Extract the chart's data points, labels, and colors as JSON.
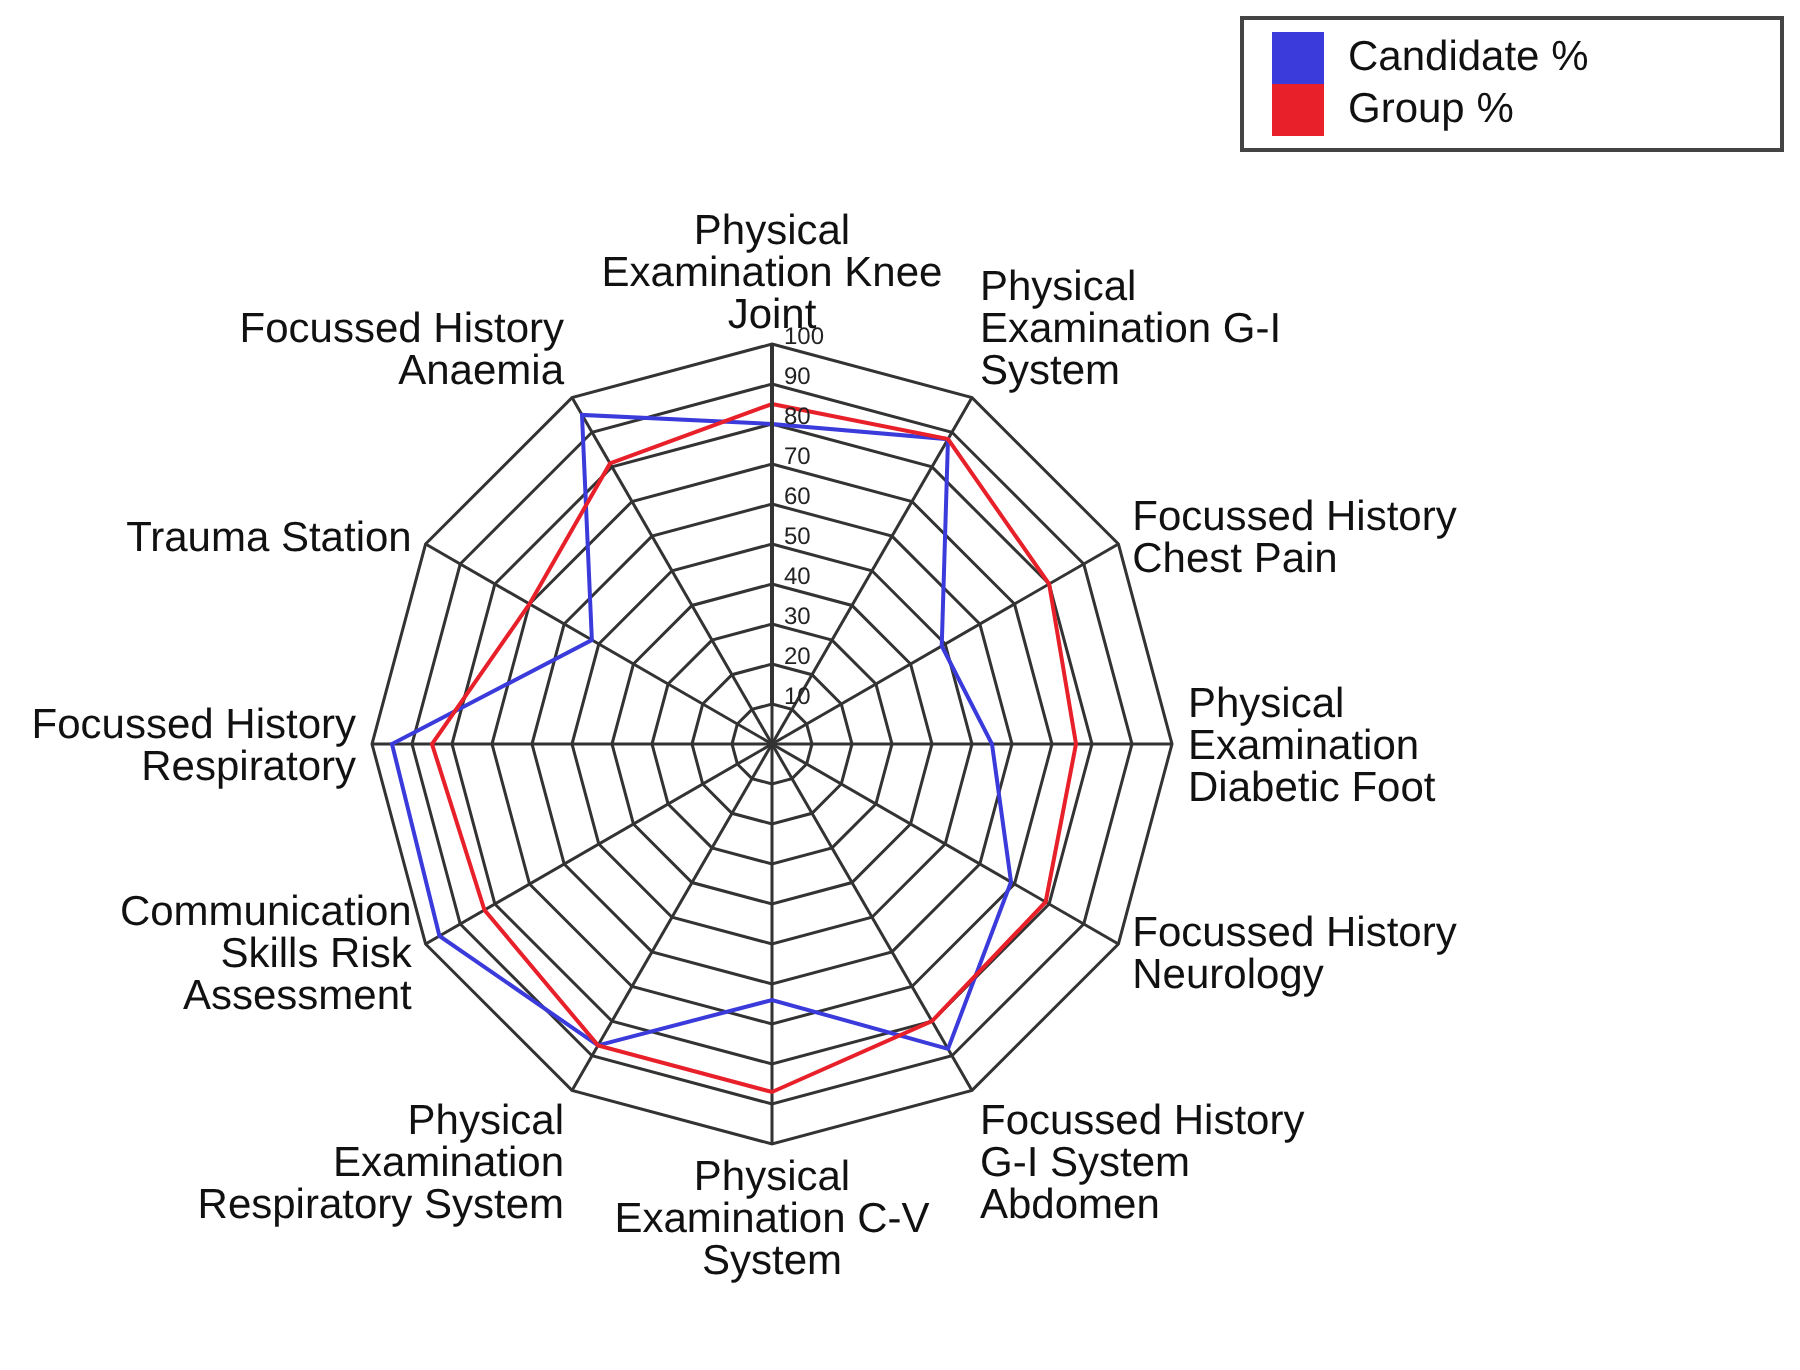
{
  "chart_data": {
    "type": "radar",
    "categories": [
      "Physical Examination Knee Joint",
      "Physical Examination G-I System",
      "Focussed History Chest Pain",
      "Physical Examination Diabetic Foot",
      "Focussed History Neurology",
      "Focussed History G-I System Abdomen",
      "Physical Examination C-V System",
      "Physical Examination Respiratory System",
      "Communication Skills Risk Assessment",
      "Focussed History Respiratory",
      "Trauma Station",
      "Focussed History Anaemia"
    ],
    "series": [
      {
        "name": "Candidate %",
        "color": "#3b3bdc",
        "values": [
          80,
          88,
          49,
          55,
          69,
          88,
          64,
          87,
          96,
          95,
          52,
          95
        ]
      },
      {
        "name": "Group %",
        "color": "#e8202a",
        "values": [
          85,
          88,
          80,
          76,
          79,
          80,
          87,
          87,
          83,
          85,
          70,
          81
        ]
      }
    ],
    "ylim": [
      0,
      100
    ],
    "yticks": [
      10,
      20,
      30,
      40,
      50,
      60,
      70,
      80,
      90,
      100
    ],
    "grid": true,
    "legend": "top right",
    "marker": "none"
  }
}
